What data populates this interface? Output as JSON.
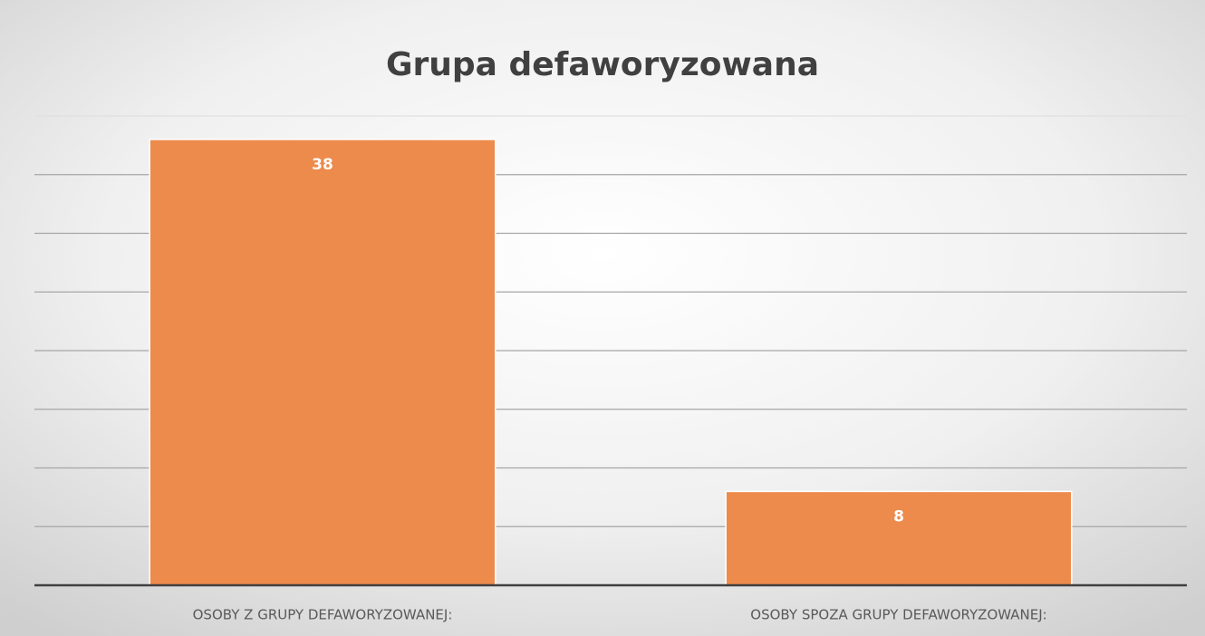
{
  "chart_data": {
    "type": "bar",
    "title": "Grupa defaworyzowana",
    "categories": [
      "OSOBY Z GRUPY DEFAWORYZOWANEJ:",
      "OSOBY SPOZA GRUPY DEFAWORYZOWANEJ:"
    ],
    "values": [
      38,
      8
    ],
    "color": "#ed8b4c",
    "ylim": [
      0,
      40
    ],
    "yticks": [
      0,
      5,
      10,
      15,
      20,
      25,
      30,
      35,
      40
    ],
    "grid": true
  }
}
